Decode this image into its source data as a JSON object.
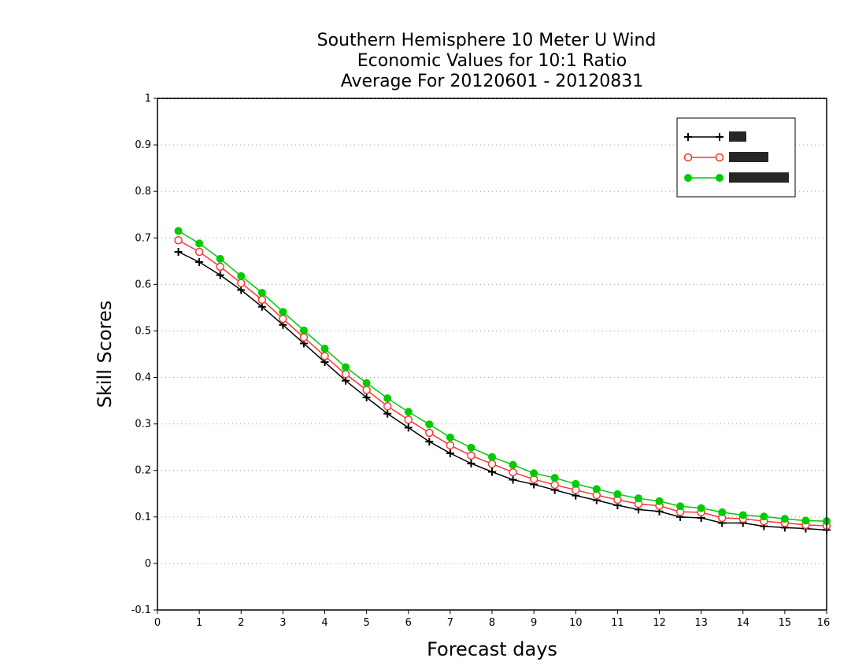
{
  "chart_data": {
    "type": "line",
    "title": [
      "Southern Hemisphere 10 Meter U Wind",
      "Economic Values for 10:1 Ratio",
      "Average For 20120601 - 20120831"
    ],
    "xlabel": "Forecast days",
    "ylabel": "Skill Scores",
    "xlim": [
      0,
      16
    ],
    "ylim": [
      -0.1,
      1
    ],
    "xticks": [
      "0",
      "1",
      "2",
      "3",
      "4",
      "5",
      "6",
      "7",
      "8",
      "9",
      "10",
      "11",
      "12",
      "13",
      "14",
      "15",
      "16"
    ],
    "yticks": [
      "-0.1",
      "0",
      "0.1",
      "0.2",
      "0.3",
      "0.4",
      "0.5",
      "0.6",
      "0.7",
      "0.8",
      "0.9",
      "1"
    ],
    "grid": "horizontal dotted",
    "legend_position": "top-right",
    "x": [
      0.5,
      1,
      1.5,
      2,
      2.5,
      3,
      3.5,
      4,
      4.5,
      5,
      5.5,
      6,
      6.5,
      7,
      7.5,
      8,
      8.5,
      9,
      9.5,
      10,
      10.5,
      11,
      11.5,
      12,
      12.5,
      13,
      13.5,
      14,
      14.5,
      15,
      15.5,
      16
    ],
    "series": [
      {
        "name": "",
        "color": "#000000",
        "marker": "plus",
        "values": [
          0.67,
          0.648,
          0.62,
          0.588,
          0.552,
          0.513,
          0.473,
          0.433,
          0.393,
          0.357,
          0.322,
          0.292,
          0.262,
          0.237,
          0.215,
          0.197,
          0.18,
          0.17,
          0.158,
          0.146,
          0.136,
          0.125,
          0.116,
          0.112,
          0.1,
          0.098,
          0.087,
          0.087,
          0.08,
          0.077,
          0.075,
          0.072
        ]
      },
      {
        "name": "",
        "color": "#ff3333",
        "marker": "open-circle",
        "values": [
          0.695,
          0.67,
          0.638,
          0.603,
          0.567,
          0.526,
          0.486,
          0.446,
          0.407,
          0.373,
          0.338,
          0.309,
          0.281,
          0.254,
          0.232,
          0.214,
          0.196,
          0.181,
          0.169,
          0.158,
          0.147,
          0.137,
          0.128,
          0.124,
          0.111,
          0.11,
          0.098,
          0.096,
          0.091,
          0.087,
          0.083,
          0.081
        ]
      },
      {
        "name": "",
        "color": "#00cc00",
        "marker": "filled-circle",
        "values": [
          0.715,
          0.688,
          0.655,
          0.618,
          0.582,
          0.541,
          0.501,
          0.462,
          0.422,
          0.388,
          0.355,
          0.326,
          0.299,
          0.271,
          0.249,
          0.229,
          0.212,
          0.194,
          0.184,
          0.171,
          0.16,
          0.149,
          0.14,
          0.134,
          0.123,
          0.119,
          0.11,
          0.104,
          0.101,
          0.096,
          0.092,
          0.091
        ]
      }
    ]
  }
}
